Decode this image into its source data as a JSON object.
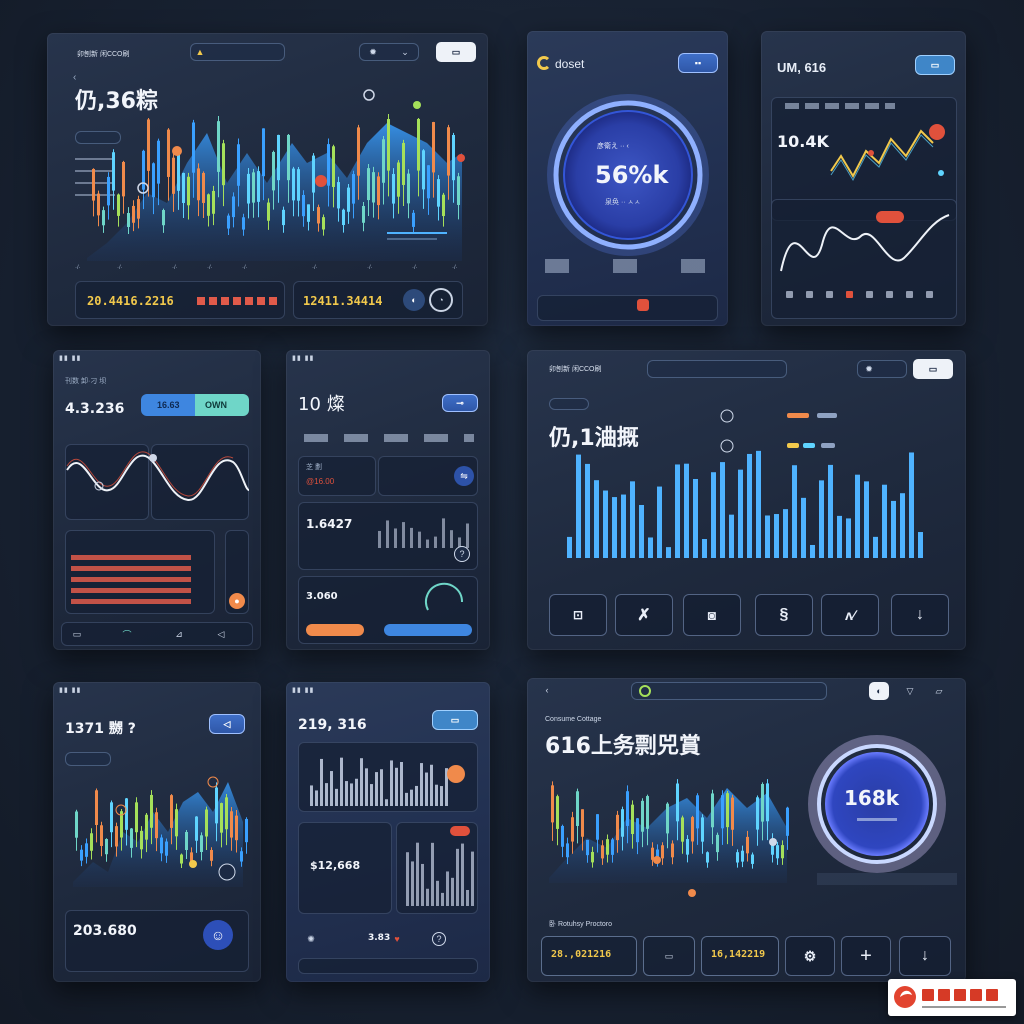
{
  "card1": {
    "title": "仍,36粽",
    "header": "卯刨新 闲CCO刷",
    "chev": "‹",
    "total_a": "20.4416.2216",
    "total_b": "12411.34414"
  },
  "card2": {
    "logo": "doset",
    "ring_value": "56%k",
    "ring_top": "彦衛え ·· ‹",
    "ring_bottom": "泉奂 ·· ㅅㅅ"
  },
  "card3": {
    "title": "UM, 616",
    "value": "10.4K"
  },
  "card4": {
    "value": "4.3.236",
    "tab_a": "16.63",
    "tab_b": "OWN",
    "head": "刊数 卸·刁 坝"
  },
  "card5": {
    "title": "10 燦",
    "l1": "芝 劃",
    "l1v": "@16.00",
    "value": "1.6427",
    "s1": "3.060"
  },
  "card6": {
    "title": "仍,1浀摡",
    "header": "卯刨新 闲CCO刷"
  },
  "card7": {
    "title": "1371 嬲 ?"
  },
  "card8": {
    "title": "219, 316",
    "value": "$12,668",
    "b1": "3.83"
  },
  "card9": {
    "value": "203.680"
  },
  "card10": {
    "title": "616上务剽兕賞",
    "sub": "Consume Cottage",
    "ring": "168k",
    "bottom_label": "卧 Rotuhsy Proctoro",
    "v1": "28.,021216",
    "v2": "16,142219"
  },
  "colors": {
    "bg": "#161f2e",
    "accent": "#4fb3ff",
    "orange": "#f08a4b",
    "yellow": "#f2c94c"
  }
}
